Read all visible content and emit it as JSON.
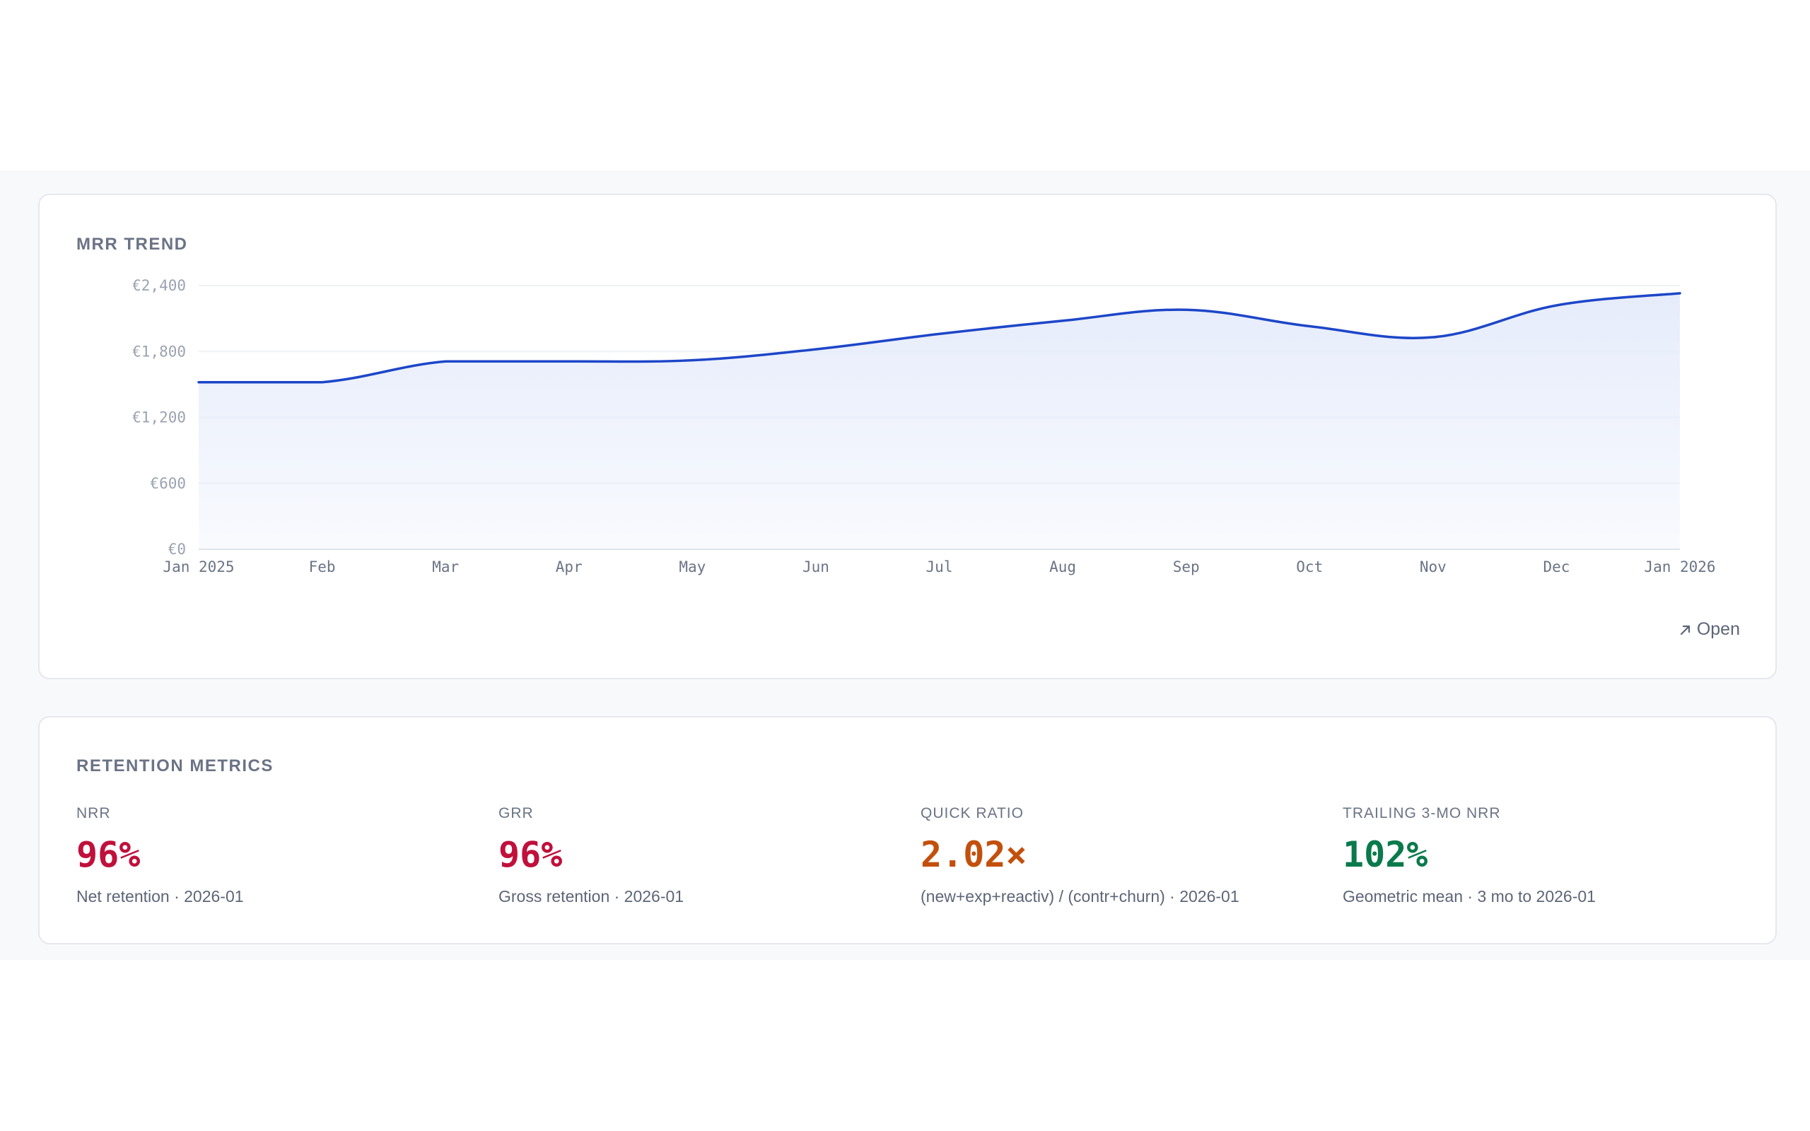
{
  "mrr_trend": {
    "title": "MRR TREND",
    "open_label": "Open",
    "open_icon": "arrow-up-right-icon",
    "line_color": "#1d46c8",
    "fill_color": "#e6ecfb"
  },
  "chart_data": {
    "type": "area",
    "title": "MRR TREND",
    "x": [
      "Jan 2025",
      "Feb",
      "Mar",
      "Apr",
      "May",
      "Jun",
      "Jul",
      "Aug",
      "Sep",
      "Oct",
      "Nov",
      "Dec",
      "Jan 2026"
    ],
    "values": [
      1520,
      1520,
      1710,
      1710,
      1720,
      1820,
      1960,
      2080,
      2180,
      2030,
      1930,
      2220,
      2330
    ],
    "ylim": [
      0,
      2400
    ],
    "yticks": [
      0,
      600,
      1200,
      1800,
      2400
    ],
    "ytick_labels": [
      "€0",
      "€600",
      "€1,200",
      "€1,800",
      "€2,400"
    ],
    "xlabel": "",
    "ylabel": "",
    "grid": true,
    "legend": "none"
  },
  "retention": {
    "title": "RETENTION METRICS",
    "metrics": [
      {
        "label": "NRR",
        "value": "96%",
        "sub": "Net retention · 2026-01",
        "color": "#c0103c"
      },
      {
        "label": "GRR",
        "value": "96%",
        "sub": "Gross retention · 2026-01",
        "color": "#c0103c"
      },
      {
        "label": "QUICK RATIO",
        "value": "2.02×",
        "sub": "(new+exp+reactiv) / (contr+churn) · 2026-01",
        "color": "#c2500c"
      },
      {
        "label": "TRAILING 3-MO NRR",
        "value": "102%",
        "sub": "Geometric mean · 3 mo to 2026-01",
        "color": "#0a7a4c"
      }
    ]
  }
}
